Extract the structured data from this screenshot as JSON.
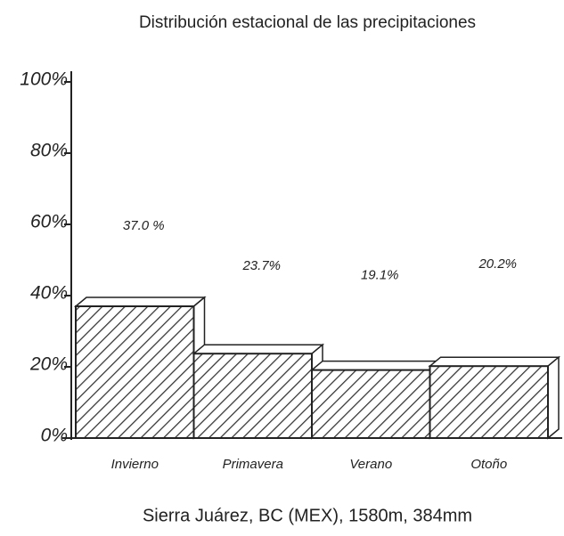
{
  "chart_data": {
    "type": "bar",
    "title": "Distribución estacional de las precipitaciones",
    "x_label": "Sierra Juárez, BC (MEX), 1580m, 384mm",
    "categories": [
      "Invierno",
      "Primavera",
      "Verano",
      "Otoño"
    ],
    "values": [
      37.0,
      23.7,
      19.1,
      20.2
    ],
    "value_labels": [
      "37.0 %",
      "23.7%",
      "19.1%",
      "20.2%"
    ],
    "color": "#333333",
    "ylim": [
      0,
      100
    ],
    "yticks": [
      {
        "value": 0,
        "label": "0%"
      },
      {
        "value": 20,
        "label": "20%"
      },
      {
        "value": 40,
        "label": "40%"
      },
      {
        "value": 60,
        "label": "60%"
      },
      {
        "value": 80,
        "label": "80%"
      },
      {
        "value": 100,
        "label": "100%"
      }
    ]
  }
}
